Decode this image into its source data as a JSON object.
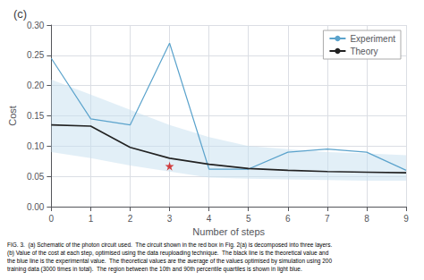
{
  "chart_data": {
    "type": "line",
    "title": "(c)",
    "xlabel": "Number of steps",
    "ylabel": "Cost",
    "x": [
      0,
      1,
      2,
      3,
      4,
      5,
      6,
      7,
      8,
      9
    ],
    "series": [
      {
        "name": "Experiment",
        "color": "#5ba3cc",
        "values": [
          0.245,
          0.145,
          0.135,
          0.27,
          0.062,
          0.062,
          0.09,
          0.095,
          0.09,
          0.06
        ]
      },
      {
        "name": "Theory",
        "color": "#222222",
        "values": [
          0.135,
          0.133,
          0.098,
          0.08,
          0.07,
          0.063,
          0.06,
          0.058,
          0.057,
          0.056
        ]
      }
    ],
    "band": {
      "lower": [
        0.09,
        0.08,
        0.068,
        0.058,
        0.048,
        0.046,
        0.045,
        0.044,
        0.043,
        0.043
      ],
      "upper": [
        0.21,
        0.185,
        0.16,
        0.135,
        0.115,
        0.1,
        0.095,
        0.09,
        0.088,
        0.085
      ],
      "color": "#c5dff0"
    },
    "point": {
      "x": 3,
      "y": 0.067,
      "color": "#cc1111",
      "marker": "star"
    },
    "xlim": [
      0,
      9
    ],
    "ylim": [
      0.0,
      0.3
    ],
    "xticks": [
      0,
      1,
      2,
      3,
      4,
      5,
      6,
      7,
      8,
      9
    ],
    "yticks": [
      {
        "value": 0,
        "label": "0.00"
      },
      0.05,
      {
        "value": 0.1,
        "label": "0.10"
      },
      0.15,
      {
        "value": 0.2,
        "label": "0.20"
      },
      0.25,
      {
        "value": 0.3,
        "label": "0.30"
      }
    ],
    "grid": true,
    "legend": "upper right",
    "annotations": [
      "FIG. 3.  (a) Schematic of the photon circuit used.  The circuit shown in the red box in Fig. 2(a) is decomposed into three layers.",
      "(b) Value of the cost at each step, optimised using the data reuploading technique.  The black line is the theoretical value and",
      "the blue line is the experimental value.  The theoretical values are the average of the values optimised by simulation using 200",
      "training data (3000 times in total).  The region between the 10th and 90th percentile quartiles is shown in light blue."
    ]
  }
}
